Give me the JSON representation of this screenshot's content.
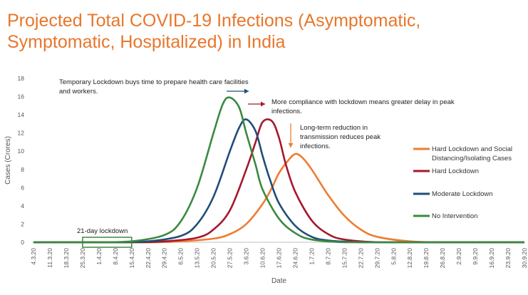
{
  "chart_data": {
    "type": "line",
    "title": "Projected Total COVID-19 Infections (Asymptomatic, Symptomatic, Hospitalized) in India",
    "xlabel": "Date",
    "ylabel": "Cases (Crores)",
    "ylim": [
      0,
      18
    ],
    "yticks": [
      "0",
      "2",
      "4",
      "6",
      "8",
      "10",
      "12",
      "14",
      "16",
      "18"
    ],
    "x_tick_labels": [
      "4.3.20",
      "11.3.20",
      "18.3.20",
      "25.3.20",
      "1.4.20",
      "8.4.20",
      "15.4.20",
      "22.4.20",
      "29.4.20",
      "6.5.20",
      "13.5.20",
      "20.5.20",
      "27.5.20",
      "3.6.20",
      "10.6.20",
      "17.6.20",
      "24.6.20",
      "1.7.20",
      "8.7.20",
      "15.7.20",
      "22.7.20",
      "29.7.20",
      "5.8.20",
      "12.8.20",
      "19.8.20",
      "26.8.20",
      "2.9.20",
      "9.9.20",
      "16.9.20",
      "23.9.20",
      "30.9.20"
    ],
    "grid": false,
    "legend_position": "right",
    "series": [
      {
        "name": "Hard Lockdown and Social Distancing/Isolating Cases",
        "color": "#ed7d31",
        "x": [
          "22.4.20",
          "6.5.20",
          "20.5.20",
          "27.5.20",
          "3.6.20",
          "10.6.20",
          "14.6.20",
          "17.6.20",
          "21.6.20",
          "24.6.20",
          "27.6.20",
          "1.7.20",
          "8.7.20",
          "15.7.20",
          "22.7.20",
          "29.7.20",
          "12.8.20",
          "26.8.20"
        ],
        "values": [
          0,
          0.1,
          0.4,
          0.9,
          2.0,
          4.2,
          6.0,
          7.6,
          9.0,
          9.7,
          9.3,
          8.0,
          5.2,
          2.9,
          1.4,
          0.6,
          0.1,
          0
        ]
      },
      {
        "name": "Hard Lockdown",
        "color": "#a5182e",
        "x": [
          "15.4.20",
          "29.4.20",
          "13.5.20",
          "20.5.20",
          "27.5.20",
          "3.6.20",
          "7.6.20",
          "10.6.20",
          "14.6.20",
          "17.6.20",
          "20.6.20",
          "24.6.20",
          "1.7.20",
          "8.7.20",
          "15.7.20",
          "29.7.20",
          "12.8.20"
        ],
        "values": [
          0,
          0.1,
          0.5,
          1.4,
          3.5,
          8.0,
          11.0,
          13.2,
          13.3,
          11.5,
          8.5,
          5.5,
          2.4,
          0.9,
          0.3,
          0,
          0
        ]
      },
      {
        "name": "Moderate Lockdown",
        "color": "#1f4e79",
        "x": [
          "8.4.20",
          "22.4.20",
          "6.5.20",
          "13.5.20",
          "20.5.20",
          "27.5.20",
          "31.5.20",
          "3.6.20",
          "7.6.20",
          "10.6.20",
          "13.6.20",
          "17.6.20",
          "24.6.20",
          "1.7.20",
          "8.7.20",
          "22.7.20",
          "5.8.20"
        ],
        "values": [
          0,
          0.1,
          0.7,
          2.0,
          5.0,
          10.0,
          12.6,
          13.5,
          12.2,
          9.5,
          7.0,
          4.3,
          1.8,
          0.6,
          0.2,
          0,
          0
        ]
      },
      {
        "name": "No Intervention",
        "color": "#3a8a3f",
        "x": [
          "1.4.20",
          "15.4.20",
          "29.4.20",
          "6.5.20",
          "13.5.20",
          "20.5.20",
          "24.5.20",
          "27.5.20",
          "31.5.20",
          "3.6.20",
          "7.6.20",
          "10.6.20",
          "17.6.20",
          "24.6.20",
          "1.7.20",
          "15.7.20",
          "29.7.20"
        ],
        "values": [
          0,
          0.1,
          0.8,
          2.3,
          6.0,
          12.0,
          15.2,
          15.9,
          14.8,
          12.0,
          8.5,
          5.8,
          2.6,
          1.0,
          0.3,
          0,
          0
        ]
      }
    ],
    "annotations": [
      {
        "id": "ann1",
        "lines": [
          "Temporary Lockdown buys time to prepare health care facilities",
          "and workers."
        ],
        "arrow_color": "#1f4e79"
      },
      {
        "id": "ann2",
        "lines": [
          "More compliance with lockdown means greater delay in peak",
          "infections."
        ],
        "arrow_color": "#a5182e"
      },
      {
        "id": "ann3",
        "lines": [
          "Long-term reduction in",
          "transmission reduces peak",
          "infections."
        ],
        "arrow_color": "#ed7d31"
      },
      {
        "id": "ann4",
        "lines": [
          "21-day lockdown"
        ],
        "box_from": "25.3.20",
        "box_to": "15.4.20",
        "box_color": "#3a8a3f"
      }
    ]
  }
}
